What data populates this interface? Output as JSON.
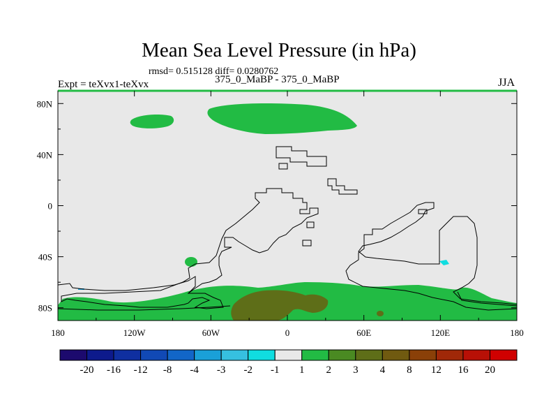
{
  "chart_data": {
    "type": "heatmap",
    "title": "Mean Sea Level Pressure (in hPa)",
    "stats_text": "rmsd= 0.515128 diff= 0.0280762",
    "left_label": "Expt = teXvx1-teXvx",
    "center_label": "375_0_MaBP - 375_0_MaBP",
    "right_label": "JJA",
    "x_ticks": [
      "180",
      "120W",
      "60W",
      "0",
      "60E",
      "120E",
      "180"
    ],
    "x_tick_values": [
      -180,
      -120,
      -60,
      0,
      60,
      120,
      180
    ],
    "y_ticks": [
      "80N",
      "40N",
      "0",
      "40S",
      "80S"
    ],
    "y_tick_values": [
      80,
      40,
      0,
      -40,
      -80
    ],
    "xlim": [
      -180,
      180
    ],
    "ylim": [
      -90,
      90
    ],
    "colorbar": {
      "levels": [
        "-20",
        "-16",
        "-12",
        "-8",
        "-4",
        "-3",
        "-2",
        "-1",
        "1",
        "2",
        "3",
        "4",
        "8",
        "12",
        "16",
        "20"
      ],
      "colors": [
        "#1c0a6e",
        "#0d1a8c",
        "#0f2fa0",
        "#1149b5",
        "#1266c8",
        "#1aa0d8",
        "#36c0e0",
        "#10dde0",
        "#e8e8e8",
        "#22bb44",
        "#4a8a22",
        "#5e6e18",
        "#705a10",
        "#8a4008",
        "#a02808",
        "#b81006",
        "#d00000"
      ]
    },
    "background_color": "#e8e8e8",
    "anomaly_regions": [
      {
        "name": "arctic-positive-anomaly",
        "level": "1 to 2",
        "color": "#22bb44"
      },
      {
        "name": "siberia-positive-anomaly",
        "level": "1 to 2",
        "color": "#22bb44"
      },
      {
        "name": "antarctic-positive-anomaly",
        "level": "1 to 2",
        "color": "#22bb44"
      },
      {
        "name": "antarctic-core-anomaly",
        "level": "3 to 4",
        "color": "#5e6e18"
      },
      {
        "name": "south-pacific-positive-anomaly",
        "level": "1 to 2",
        "color": "#22bb44"
      },
      {
        "name": "indian-ocean-negative-anomaly",
        "level": "-2 to -1",
        "color": "#10dde0"
      }
    ]
  }
}
